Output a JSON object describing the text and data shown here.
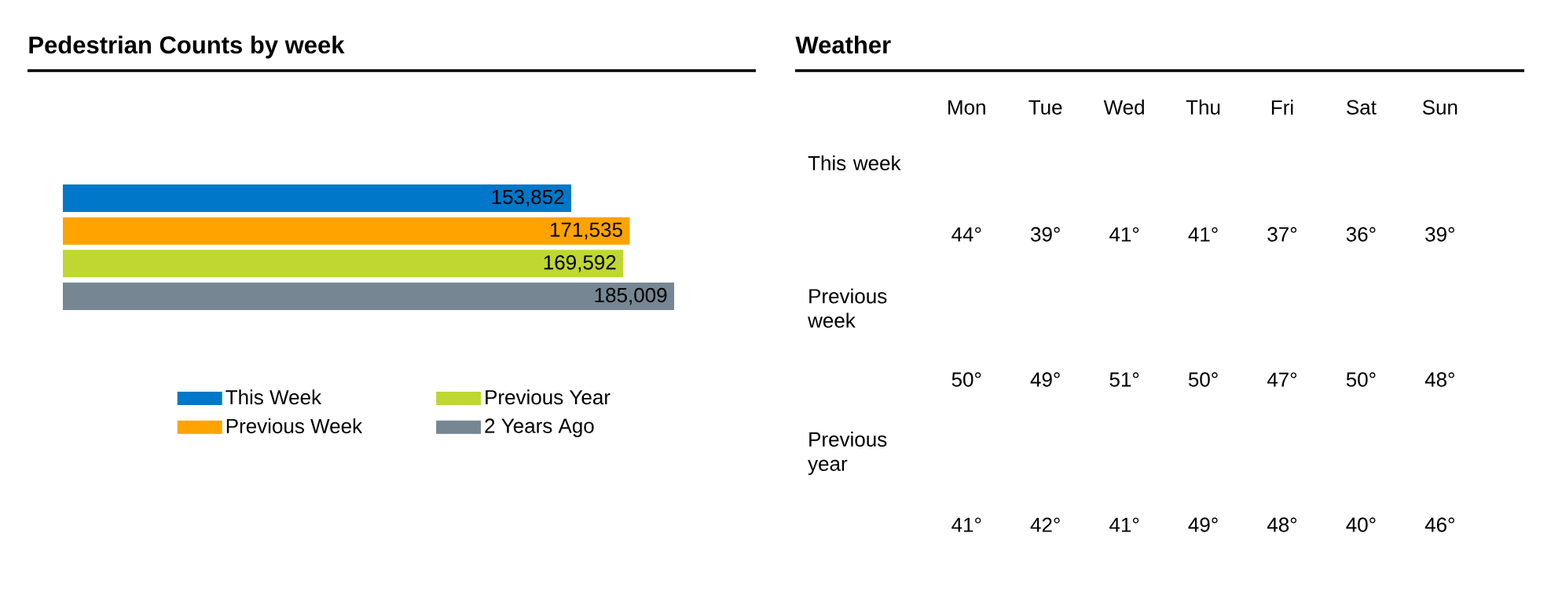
{
  "chart_data": [
    {
      "type": "bar",
      "orientation": "horizontal",
      "title": "Pedestrian Counts by week",
      "categories": [
        null
      ],
      "series": [
        {
          "name": "This Week",
          "color": "#0077c8",
          "values": [
            153852
          ],
          "value_labels": [
            "153,852"
          ]
        },
        {
          "name": "Previous Week",
          "color": "#ffa300",
          "values": [
            171535
          ],
          "value_labels": [
            "171,535"
          ]
        },
        {
          "name": "Previous Year",
          "color": "#bfd730",
          "values": [
            169592
          ],
          "value_labels": [
            "169,592"
          ]
        },
        {
          "name": "2 Years Ago",
          "color": "#768692",
          "values": [
            185009
          ],
          "value_labels": [
            "185,009"
          ]
        }
      ],
      "legend": "bottom",
      "tick_labels": false
    },
    {
      "type": "other",
      "title": "Weather",
      "categories": [
        "Mon",
        "Tue",
        "Wed",
        "Thu",
        "Fri",
        "Sat",
        "Sun"
      ],
      "y_categories": [
        "This week",
        "Previous week",
        "Previous year"
      ],
      "annotations": [
        "44°",
        "39°",
        "41°",
        "41°",
        "37°",
        "36°",
        "39°",
        "50°",
        "49°",
        "51°",
        "50°",
        "47°",
        "50°",
        "48°",
        "41°",
        "42°",
        "41°",
        "49°",
        "48°",
        "40°",
        "46°"
      ]
    }
  ]
}
